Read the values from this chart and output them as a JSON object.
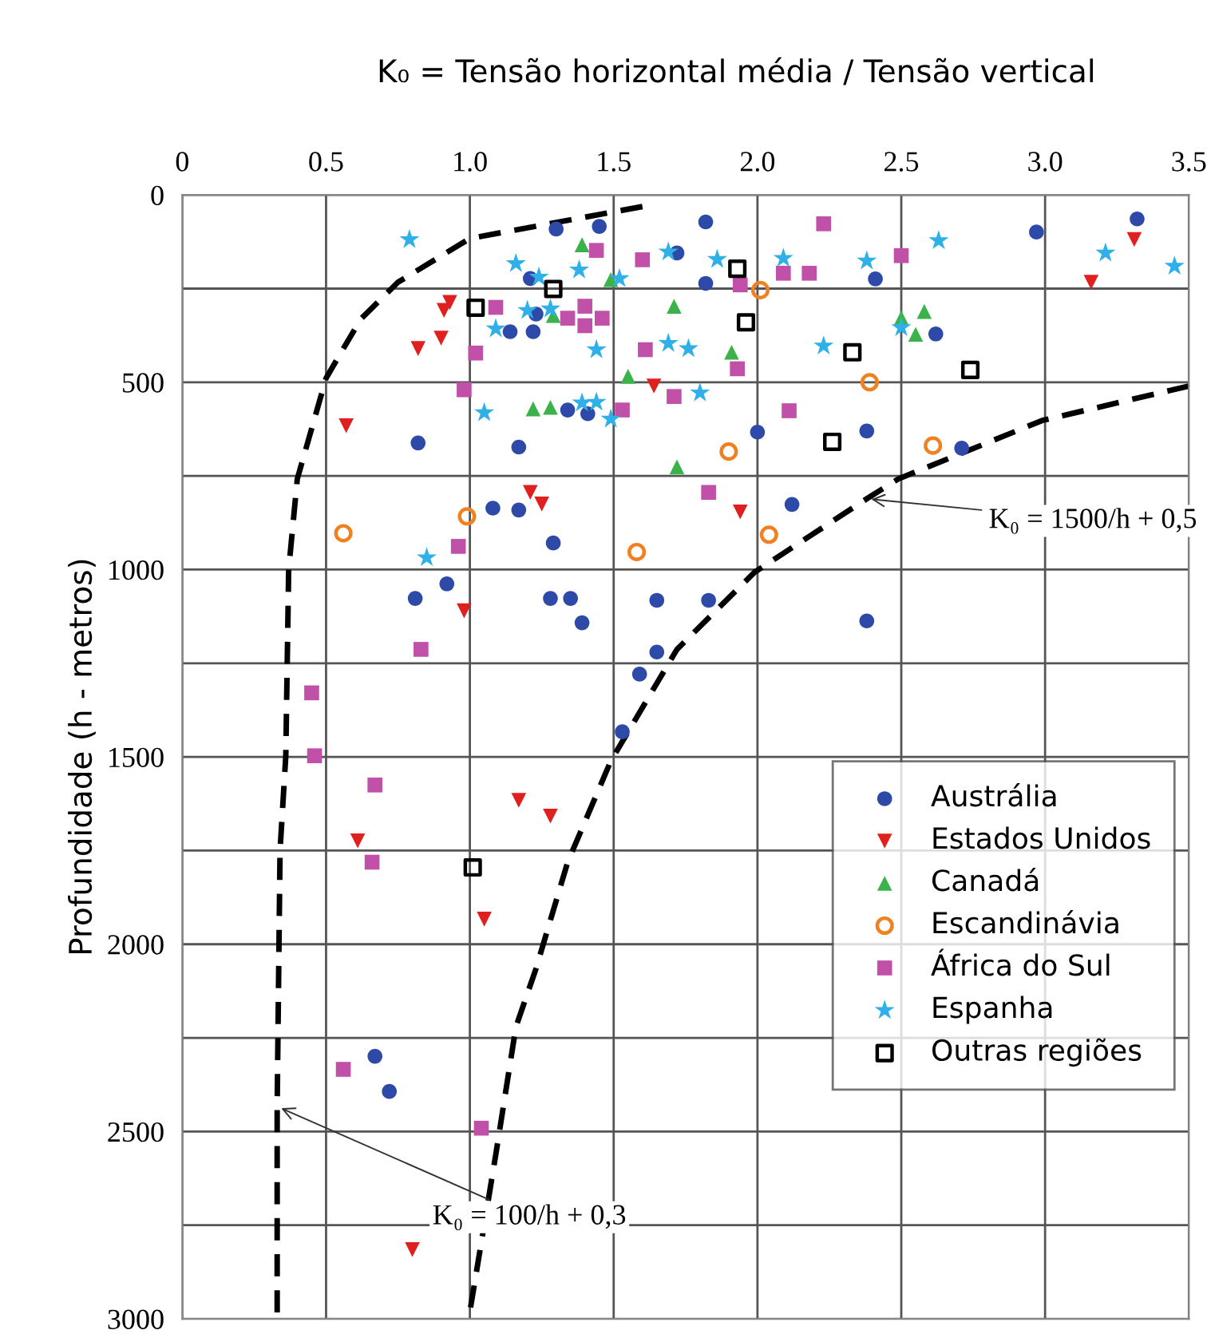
{
  "chart_data": {
    "type": "scatter",
    "title": "K₀ = Tensão horizontal média / Tensão vertical",
    "ylabel": "Profundidade (h - metros)",
    "xlim": [
      0,
      3.5
    ],
    "xticks": [
      0,
      0.5,
      {
        "value": 1,
        "label": "1.0"
      },
      1.5,
      {
        "value": 2,
        "label": "2.0"
      },
      2.5,
      {
        "value": 3,
        "label": "3.0"
      },
      3.5
    ],
    "ylim": [
      3000,
      0
    ],
    "yticks": [
      0,
      {
        "value": 250,
        "label": null
      },
      500,
      {
        "value": 750,
        "label": null
      },
      1000,
      {
        "value": 1250,
        "label": null
      },
      1500,
      {
        "value": 1750,
        "label": null
      },
      2000,
      {
        "value": 2250,
        "label": null
      },
      2500,
      {
        "value": 2750,
        "label": null
      },
      3000
    ],
    "grid": true,
    "legend": "right",
    "series": [
      {
        "name": "Austrália",
        "color": "#2e4aa8",
        "marker": "circle",
        "x": [
          1.3,
          1.45,
          1.21,
          1.23,
          1.14,
          1.22,
          1.34,
          1.41,
          0.82,
          1.17,
          1.08,
          1.17,
          1.29,
          1.72,
          1.82,
          1.82,
          2.41,
          2.97,
          3.32,
          2.62,
          2.0,
          2.38,
          2.71,
          2.12,
          0.92,
          0.81,
          1.28,
          1.35,
          1.39,
          1.65,
          1.65,
          1.59,
          1.53,
          1.83,
          2.38,
          0.67,
          0.72
        ],
        "values": [
          91,
          84,
          223,
          318,
          365,
          365,
          574,
          584,
          662,
          673,
          836,
          841,
          929,
          155,
          72,
          236,
          224,
          99,
          64,
          371,
          633,
          630,
          676,
          826,
          1038,
          1077,
          1077,
          1077,
          1142,
          1082,
          1220,
          1279,
          1433,
          1082,
          1137,
          2299,
          2393
        ]
      },
      {
        "name": "Estados Unidos",
        "color": "#e0201e",
        "marker": "triangle_down",
        "x": [
          0.93,
          0.91,
          0.9,
          0.82,
          0.57,
          1.21,
          1.25,
          1.64,
          1.94,
          3.16,
          3.31,
          0.98,
          1.17,
          1.28,
          0.61,
          1.05,
          0.8
        ],
        "values": [
          287,
          308,
          382,
          410,
          616,
          794,
          825,
          510,
          846,
          233,
          119,
          1110,
          1616,
          1658,
          1724,
          1933,
          2815
        ]
      },
      {
        "name": "Canadá",
        "color": "#3cb34a",
        "marker": "triangle",
        "x": [
          1.39,
          1.49,
          1.71,
          1.29,
          1.55,
          1.22,
          1.28,
          1.72,
          1.91,
          2.5,
          2.58,
          2.55
        ],
        "values": [
          133,
          226,
          297,
          322,
          484,
          571,
          567,
          726,
          420,
          328,
          311,
          372
        ]
      },
      {
        "name": "Escandinávia",
        "color": "#f08020",
        "marker": "circle_open",
        "x": [
          0.56,
          0.99,
          1.58,
          2.01,
          2.39,
          1.9,
          2.61,
          2.04
        ],
        "values": [
          903,
          858,
          953,
          254,
          500,
          685,
          669,
          907
        ]
      },
      {
        "name": "África do Sul",
        "color": "#c050a8",
        "marker": "square",
        "x": [
          1.44,
          1.6,
          1.09,
          1.34,
          1.4,
          1.4,
          1.46,
          1.02,
          1.61,
          0.98,
          1.53,
          1.71,
          0.96,
          2.23,
          2.5,
          2.09,
          2.18,
          1.94,
          1.93,
          2.11,
          1.83,
          0.83,
          0.45,
          0.46,
          0.67,
          0.66,
          0.56,
          1.04
        ],
        "values": [
          148,
          173,
          300,
          329,
          297,
          349,
          329,
          422,
          413,
          520,
          574,
          538,
          938,
          77,
          162,
          209,
          209,
          240,
          464,
          576,
          794,
          1213,
          1329,
          1497,
          1575,
          1781,
          2334,
          2491
        ]
      },
      {
        "name": "Espanha",
        "color": "#30b0e8",
        "marker": "star",
        "x": [
          0.79,
          1.16,
          1.24,
          1.38,
          1.52,
          1.69,
          1.2,
          1.28,
          1.09,
          1.44,
          1.69,
          1.76,
          1.05,
          1.39,
          1.44,
          1.49,
          0.85,
          1.86,
          2.09,
          2.38,
          2.63,
          3.21,
          3.45,
          2.23,
          2.5,
          1.8
        ],
        "values": [
          119,
          183,
          219,
          200,
          223,
          152,
          308,
          304,
          357,
          413,
          396,
          410,
          581,
          555,
          553,
          598,
          968,
          172,
          169,
          176,
          122,
          155,
          190,
          403,
          354,
          528
        ]
      },
      {
        "name": "Outras regiões",
        "color": "#000000",
        "marker": "square_open",
        "x": [
          1.02,
          1.29,
          1.93,
          1.96,
          2.33,
          2.74,
          2.26,
          1.01
        ],
        "values": [
          301,
          251,
          197,
          340,
          420,
          467,
          659,
          1795
        ]
      },
      {
        "type": "line",
        "color": "#000000",
        "marker": "none",
        "line_style": "dashed",
        "x": [
          1.6,
          1.0,
          0.75,
          0.62,
          0.5,
          0.4,
          0.37,
          0.36,
          0.34,
          0.33,
          0.33
        ],
        "values": [
          31,
          116,
          233,
          332,
          489,
          758,
          1000,
          1497,
          1750,
          2433,
          2986
        ]
      },
      {
        "type": "line",
        "color": "#000000",
        "marker": "none",
        "line_style": "dashed",
        "x": [
          3.5,
          2.99,
          2.49,
          2.38,
          1.99,
          1.72,
          1.49,
          1.34,
          1.23,
          1.16,
          1.09,
          1.0
        ],
        "values": [
          510,
          602,
          758,
          811,
          1007,
          1213,
          1511,
          1781,
          2065,
          2221,
          2562,
          2981
        ]
      }
    ],
    "annotations": [
      {
        "text": "K₀ = 1500/h + 0,5",
        "x": 2.38,
        "y": 811
      },
      {
        "text": "K₀ = 100/h + 0,3",
        "x": 0.33,
        "y": 2433
      }
    ]
  }
}
